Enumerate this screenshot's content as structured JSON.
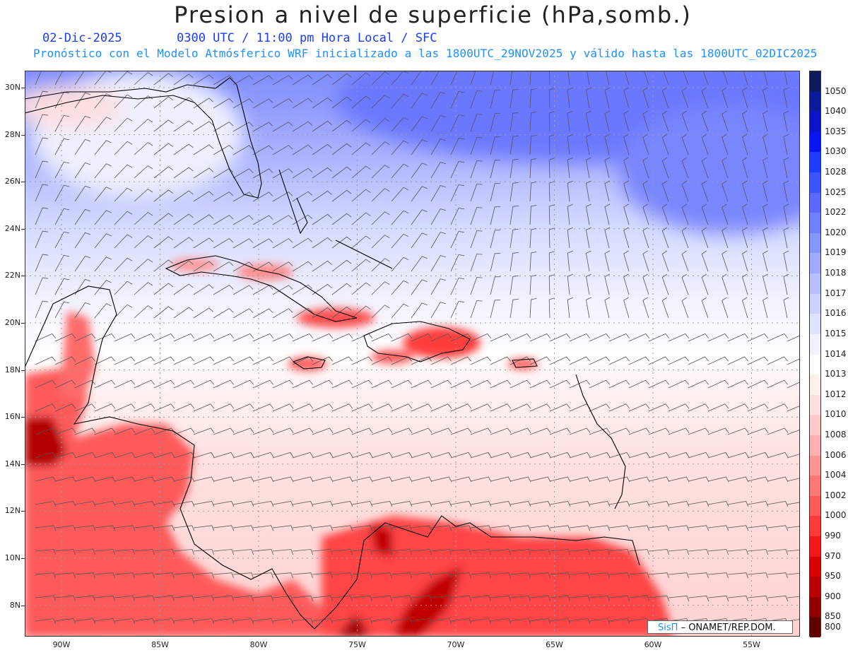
{
  "title": "Presion a nivel de superficie (hPa,somb.)",
  "subtitle_date": "02-Dic-2025",
  "subtitle_time": "0300 UTC / 11:00 pm Hora Local / SFC",
  "subtitle_model": "Pronóstico con el Modelo Atmósferico WRF inicializado a las 1800UTC_29NOV2025 y válido hasta las  1800UTC_02DIC2025",
  "credit_brand": "SisΠ",
  "credit_org": "– ONAMET/REP.DOM.",
  "lat_labels": [
    "30N",
    "28N",
    "26N",
    "24N",
    "22N",
    "20N",
    "18N",
    "16N",
    "14N",
    "12N",
    "10N",
    "8N"
  ],
  "lon_labels": [
    "90W",
    "85W",
    "80W",
    "75W",
    "70W",
    "65W",
    "60W",
    "55W"
  ],
  "legend_levels": [
    "1050",
    "1040",
    "1035",
    "1030",
    "1028",
    "1025",
    "1022",
    "1020",
    "1019",
    "1018",
    "1017",
    "1016",
    "1015",
    "1014",
    "1013",
    "1012",
    "1010",
    "1008",
    "1006",
    "1004",
    "1002",
    "1000",
    "990",
    "970",
    "950",
    "900",
    "850",
    "800"
  ],
  "legend_colors": [
    "#0d1a5c",
    "#0a1a9a",
    "#0a14c8",
    "#0a14f0",
    "#1e3cff",
    "#3c55ff",
    "#5a6aff",
    "#7080ff",
    "#8896ff",
    "#a0aaff",
    "#b8c0ff",
    "#ccd2ff",
    "#dfe3ff",
    "#f2f2ff",
    "#ffffff",
    "#fff0f0",
    "#ffe0e0",
    "#ffcaca",
    "#ffb0b0",
    "#ff9494",
    "#ff7878",
    "#ff5a5a",
    "#ff3a3a",
    "#f01818",
    "#d80000",
    "#b80000",
    "#900000",
    "#600000"
  ],
  "colors": {
    "accent_title": "#1a3cff",
    "accent_sub": "#1e90ff"
  }
}
